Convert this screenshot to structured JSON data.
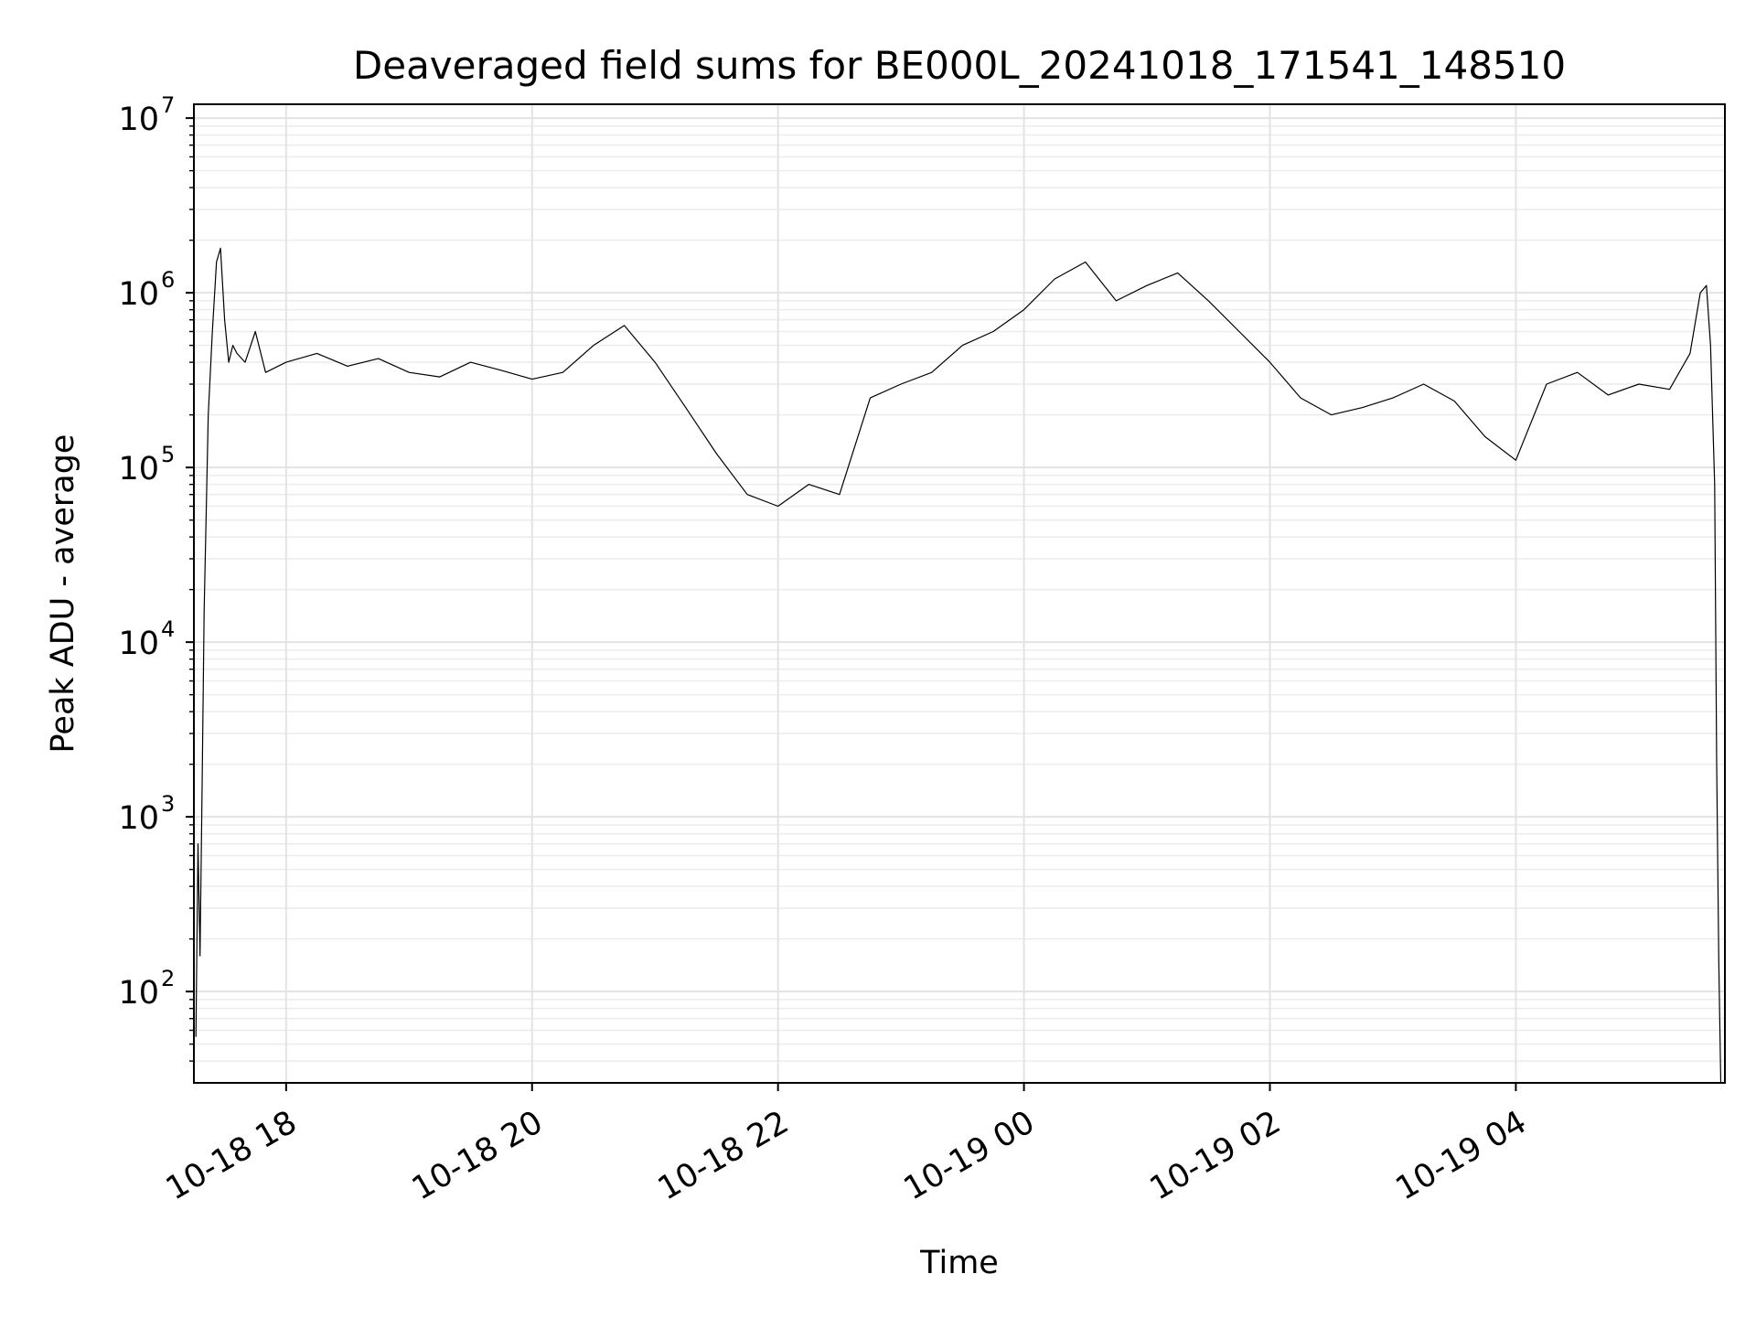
{
  "chart_data": {
    "type": "line",
    "title": "Deaveraged field sums for BE000L_20241018_171541_148510",
    "xlabel": "Time",
    "ylabel": "Peak ADU - average",
    "yscale": "log",
    "ylim": [
      30,
      12000000
    ],
    "xlim": [
      "2024-10-18 17:15",
      "2024-10-19 05:42"
    ],
    "grid": true,
    "line_color": "#000000",
    "x_ticks": [
      {
        "label": "10-18 18",
        "value": "2024-10-18 18:00"
      },
      {
        "label": "10-18 20",
        "value": "2024-10-18 20:00"
      },
      {
        "label": "10-18 22",
        "value": "2024-10-18 22:00"
      },
      {
        "label": "10-19 00",
        "value": "2024-10-19 00:00"
      },
      {
        "label": "10-19 02",
        "value": "2024-10-19 02:00"
      },
      {
        "label": "10-19 04",
        "value": "2024-10-19 04:00"
      }
    ],
    "y_ticks": [
      {
        "base": "10",
        "exp": "2",
        "value": 100
      },
      {
        "base": "10",
        "exp": "3",
        "value": 1000
      },
      {
        "base": "10",
        "exp": "4",
        "value": 10000
      },
      {
        "base": "10",
        "exp": "5",
        "value": 100000
      },
      {
        "base": "10",
        "exp": "6",
        "value": 1000000
      },
      {
        "base": "10",
        "exp": "7",
        "value": 10000000
      }
    ],
    "series": [
      {
        "x": [
          "2024-10-18 17:16",
          "2024-10-18 17:17",
          "2024-10-18 17:18",
          "2024-10-18 17:19",
          "2024-10-18 17:20",
          "2024-10-18 17:22",
          "2024-10-18 17:24",
          "2024-10-18 17:26",
          "2024-10-18 17:28",
          "2024-10-18 17:30",
          "2024-10-18 17:32",
          "2024-10-18 17:34",
          "2024-10-18 17:36",
          "2024-10-18 17:40",
          "2024-10-18 17:45",
          "2024-10-18 17:50",
          "2024-10-18 18:00",
          "2024-10-18 18:15",
          "2024-10-18 18:30",
          "2024-10-18 18:45",
          "2024-10-18 19:00",
          "2024-10-18 19:15",
          "2024-10-18 19:30",
          "2024-10-18 19:45",
          "2024-10-18 20:00",
          "2024-10-18 20:15",
          "2024-10-18 20:30",
          "2024-10-18 20:45",
          "2024-10-18 21:00",
          "2024-10-18 21:15",
          "2024-10-18 21:30",
          "2024-10-18 21:45",
          "2024-10-18 22:00",
          "2024-10-18 22:15",
          "2024-10-18 22:30",
          "2024-10-18 22:45",
          "2024-10-18 23:00",
          "2024-10-18 23:15",
          "2024-10-18 23:30",
          "2024-10-18 23:45",
          "2024-10-19 00:00",
          "2024-10-19 00:15",
          "2024-10-19 00:30",
          "2024-10-19 00:45",
          "2024-10-19 01:00",
          "2024-10-19 01:15",
          "2024-10-19 01:30",
          "2024-10-19 01:45",
          "2024-10-19 02:00",
          "2024-10-19 02:15",
          "2024-10-19 02:30",
          "2024-10-19 02:45",
          "2024-10-19 03:00",
          "2024-10-19 03:15",
          "2024-10-19 03:30",
          "2024-10-19 03:45",
          "2024-10-19 04:00",
          "2024-10-19 04:15",
          "2024-10-19 04:30",
          "2024-10-19 04:45",
          "2024-10-19 05:00",
          "2024-10-19 05:15",
          "2024-10-19 05:25",
          "2024-10-19 05:30",
          "2024-10-19 05:33",
          "2024-10-19 05:35",
          "2024-10-19 05:37",
          "2024-10-19 05:38",
          "2024-10-19 05:39",
          "2024-10-19 05:40"
        ],
        "y": [
          55,
          700,
          160,
          1500,
          15000,
          200000,
          600000,
          1500000,
          1800000,
          700000,
          400000,
          500000,
          450000,
          400000,
          600000,
          350000,
          400000,
          450000,
          380000,
          420000,
          350000,
          330000,
          400000,
          360000,
          320000,
          350000,
          500000,
          650000,
          400000,
          220000,
          120000,
          70000,
          60000,
          80000,
          70000,
          250000,
          300000,
          350000,
          500000,
          600000,
          800000,
          1200000,
          1500000,
          900000,
          1100000,
          1300000,
          900000,
          600000,
          400000,
          250000,
          200000,
          220000,
          250000,
          300000,
          240000,
          150000,
          110000,
          300000,
          350000,
          260000,
          300000,
          280000,
          450000,
          1000000,
          1100000,
          500000,
          80000,
          2000,
          150,
          30
        ]
      }
    ]
  }
}
